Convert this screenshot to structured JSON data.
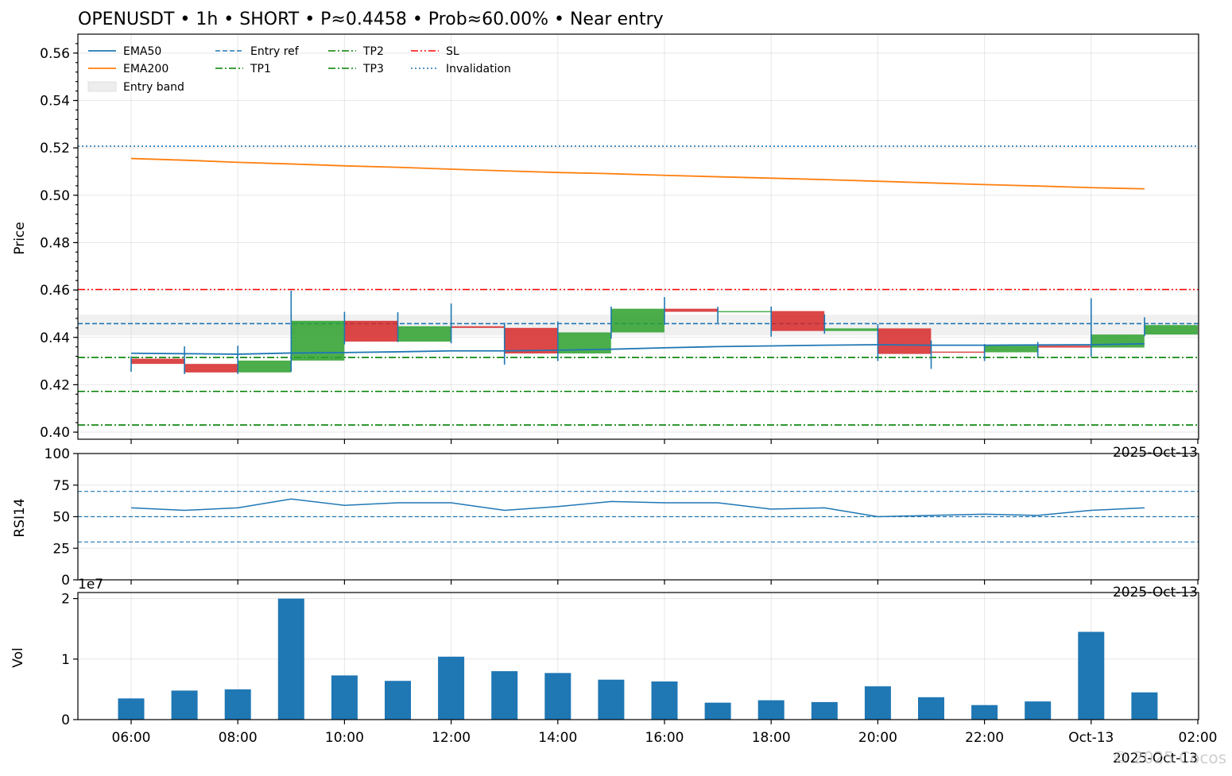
{
  "title": "OPENUSDT • 1h • SHORT • P≈0.4458 • Prob≈60.00% • Near entry",
  "watermark": "© 2025 Cocos",
  "colors": {
    "ema50": "#1f77b4",
    "ema200": "#ff7f0e",
    "entry_ref": "#1f77b4",
    "tp": "#008000",
    "sl": "#ff0000",
    "invalidation": "#1f77b4",
    "bull": "#2ca02c",
    "bear": "#d62728",
    "wick": "#1f77b4",
    "entry_band": "#d3d3d3",
    "rsi": "#1f77b4",
    "volume": "#1f77b4"
  },
  "legend": {
    "ema50": "EMA50",
    "ema200": "EMA200",
    "entry_band": "Entry band",
    "entry_ref": "Entry ref",
    "tp1": "TP1",
    "tp2": "TP2",
    "tp3": "TP3",
    "sl": "SL",
    "invalidation": "Invalidation"
  },
  "axes": {
    "price_ylabel": "Price",
    "rsi_ylabel": "RSI14",
    "vol_ylabel": "Vol",
    "vol_exponent": "1e7",
    "date_offset": "2025-Oct-13",
    "x_ticks": [
      "06:00",
      "08:00",
      "10:00",
      "12:00",
      "14:00",
      "16:00",
      "18:00",
      "20:00",
      "22:00",
      "Oct-13",
      "02:00"
    ],
    "price_ticks": [
      "0.40",
      "0.42",
      "0.44",
      "0.46",
      "0.48",
      "0.50",
      "0.52",
      "0.54",
      "0.56"
    ],
    "rsi_ticks": [
      "0",
      "25",
      "50",
      "75",
      "100"
    ],
    "vol_ticks": [
      "0",
      "1",
      "2"
    ]
  },
  "chart_data": [
    {
      "type": "candlestick",
      "ylabel": "Price",
      "ylim": [
        0.397,
        0.568
      ],
      "x": [
        "06:00",
        "07:00",
        "08:00",
        "09:00",
        "10:00",
        "11:00",
        "12:00",
        "13:00",
        "14:00",
        "15:00",
        "16:00",
        "17:00",
        "18:00",
        "19:00",
        "20:00",
        "21:00",
        "22:00",
        "23:00",
        "00:00",
        "01:00"
      ],
      "open": [
        0.431,
        0.4288,
        0.4252,
        0.4302,
        0.447,
        0.4382,
        0.4447,
        0.444,
        0.4332,
        0.4421,
        0.4521,
        0.4508,
        0.4511,
        0.4427,
        0.4438,
        0.434,
        0.4337,
        0.4365,
        0.4357,
        0.4412
      ],
      "high": [
        0.432,
        0.4362,
        0.4365,
        0.4597,
        0.4508,
        0.4506,
        0.4543,
        0.4462,
        0.4467,
        0.453,
        0.457,
        0.4529,
        0.453,
        0.4497,
        0.4456,
        0.4387,
        0.4372,
        0.4381,
        0.4565,
        0.4485
      ],
      "low": [
        0.4255,
        0.4245,
        0.4245,
        0.4255,
        0.437,
        0.438,
        0.4375,
        0.4285,
        0.43,
        0.4395,
        0.4453,
        0.4462,
        0.4403,
        0.4415,
        0.43,
        0.4267,
        0.43,
        0.4318,
        0.4318,
        0.4405
      ],
      "close": [
        0.4288,
        0.4252,
        0.4302,
        0.447,
        0.4382,
        0.4447,
        0.444,
        0.4332,
        0.4421,
        0.4521,
        0.4508,
        0.4511,
        0.4427,
        0.4438,
        0.433,
        0.4337,
        0.4365,
        0.4357,
        0.4412,
        0.4452
      ],
      "ema50": [
        0.4333,
        0.4331,
        0.4329,
        0.4334,
        0.4336,
        0.4339,
        0.4343,
        0.4343,
        0.4346,
        0.435,
        0.4356,
        0.4361,
        0.4364,
        0.4367,
        0.4369,
        0.4367,
        0.4367,
        0.4368,
        0.4369,
        0.4373
      ],
      "ema200": [
        0.5155,
        0.5148,
        0.5139,
        0.5132,
        0.5124,
        0.5118,
        0.511,
        0.5103,
        0.5096,
        0.5091,
        0.5084,
        0.5078,
        0.5072,
        0.5066,
        0.5059,
        0.5052,
        0.5045,
        0.5039,
        0.5032,
        0.5027
      ],
      "entry_band": [
        0.4408,
        0.4496
      ],
      "entry_ref": 0.4458,
      "tp1": 0.4315,
      "tp2": 0.4172,
      "tp3": 0.403,
      "sl": 0.4602,
      "invalidation": 0.5207,
      "legend_position": "upper-left"
    },
    {
      "type": "line",
      "ylabel": "RSI14",
      "ylim": [
        0,
        100
      ],
      "x": [
        "06:00",
        "07:00",
        "08:00",
        "09:00",
        "10:00",
        "11:00",
        "12:00",
        "13:00",
        "14:00",
        "15:00",
        "16:00",
        "17:00",
        "18:00",
        "19:00",
        "20:00",
        "21:00",
        "22:00",
        "23:00",
        "00:00",
        "01:00"
      ],
      "values": [
        57,
        55,
        57,
        64,
        59,
        61,
        61,
        55,
        58,
        62,
        61,
        61,
        56,
        57,
        50,
        51,
        52,
        51,
        55,
        57
      ],
      "reference_lines": [
        30,
        50,
        70
      ]
    },
    {
      "type": "bar",
      "ylabel": "Vol",
      "ylim": [
        0,
        2.1
      ],
      "unit_exponent": "1e7",
      "x": [
        "06:00",
        "07:00",
        "08:00",
        "09:00",
        "10:00",
        "11:00",
        "12:00",
        "13:00",
        "14:00",
        "15:00",
        "16:00",
        "17:00",
        "18:00",
        "19:00",
        "20:00",
        "21:00",
        "22:00",
        "23:00",
        "00:00",
        "01:00"
      ],
      "values": [
        0.35,
        0.48,
        0.5,
        2.0,
        0.73,
        0.64,
        1.04,
        0.8,
        0.77,
        0.66,
        0.63,
        0.28,
        0.32,
        0.29,
        0.55,
        0.37,
        0.24,
        0.3,
        1.45,
        0.45
      ]
    }
  ]
}
